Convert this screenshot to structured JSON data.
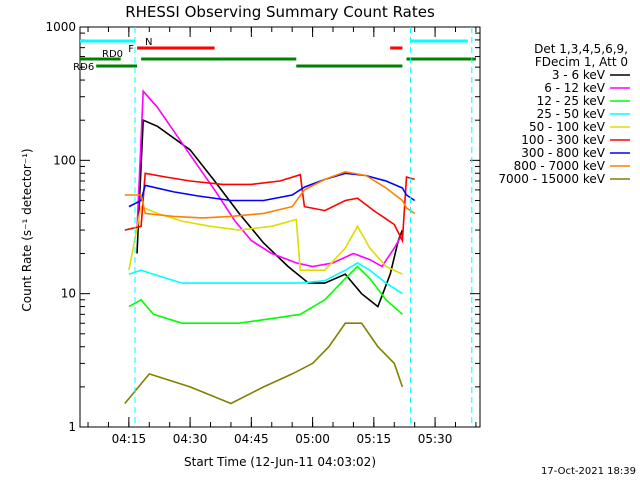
{
  "chart_data": {
    "type": "line",
    "title": "RHESSI Observing Summary Count Rates",
    "xlabel": "Start Time (12-Jun-11 04:03:02)",
    "ylabel": "Count Rate (s⁻¹ detector⁻¹)",
    "y_scale": "log",
    "ylim": [
      1,
      1000
    ],
    "xlim": [
      "04:03:02",
      "05:41:00"
    ],
    "x_ticks": [
      "04:15",
      "04:30",
      "04:45",
      "05:00",
      "05:15",
      "05:30"
    ],
    "y_ticks": [
      "1",
      "10",
      "100",
      "1000"
    ],
    "legend_header": [
      "Det 1,3,4,5,6,9,",
      "FDecim 1, Att 0"
    ],
    "legend_position": "right",
    "series": [
      {
        "name": "3 - 6 keV",
        "color": "#000000",
        "points": [
          [
            "04:17",
            20
          ],
          [
            "04:18:30",
            200
          ],
          [
            "04:22",
            180
          ],
          [
            "04:30",
            120
          ],
          [
            "04:36",
            70
          ],
          [
            "04:42",
            40
          ],
          [
            "04:48",
            24
          ],
          [
            "04:54",
            16
          ],
          [
            "04:59",
            12
          ],
          [
            "05:03",
            12
          ],
          [
            "05:08",
            14
          ],
          [
            "05:12",
            10
          ],
          [
            "05:16",
            8
          ],
          [
            "05:19",
            14
          ],
          [
            "05:21",
            25
          ],
          [
            "05:22",
            30
          ]
        ]
      },
      {
        "name": "6 - 12 keV",
        "color": "#ff00ff",
        "points": [
          [
            "04:17",
            30
          ],
          [
            "04:18:30",
            330
          ],
          [
            "04:22",
            250
          ],
          [
            "04:30",
            110
          ],
          [
            "04:36",
            60
          ],
          [
            "04:41",
            35
          ],
          [
            "04:45",
            25
          ],
          [
            "04:50",
            20
          ],
          [
            "04:56",
            17
          ],
          [
            "05:00",
            16
          ],
          [
            "05:05",
            17
          ],
          [
            "05:10",
            20
          ],
          [
            "05:14",
            18
          ],
          [
            "05:17",
            16
          ],
          [
            "05:20",
            22
          ],
          [
            "05:22",
            28
          ]
        ]
      },
      {
        "name": "12 - 25 keV",
        "color": "#00ff00",
        "points": [
          [
            "04:15",
            8
          ],
          [
            "04:18",
            9
          ],
          [
            "04:21",
            7
          ],
          [
            "04:28",
            6
          ],
          [
            "04:35",
            6
          ],
          [
            "04:42",
            6
          ],
          [
            "04:50",
            6.5
          ],
          [
            "04:57",
            7
          ],
          [
            "05:03",
            9
          ],
          [
            "05:08",
            13
          ],
          [
            "05:11",
            16
          ],
          [
            "05:14",
            13
          ],
          [
            "05:18",
            9
          ],
          [
            "05:22",
            7
          ]
        ]
      },
      {
        "name": "25 - 50 keV",
        "color": "#00ffff",
        "points": [
          [
            "04:15",
            14
          ],
          [
            "04:18",
            15
          ],
          [
            "04:21",
            14
          ],
          [
            "04:28",
            12
          ],
          [
            "04:35",
            12
          ],
          [
            "04:42",
            12
          ],
          [
            "04:50",
            12
          ],
          [
            "04:57",
            12
          ],
          [
            "05:03",
            12.5
          ],
          [
            "05:08",
            15
          ],
          [
            "05:11",
            17
          ],
          [
            "05:14",
            15
          ],
          [
            "05:18",
            12
          ],
          [
            "05:22",
            10
          ]
        ]
      },
      {
        "name": "50 - 100 keV",
        "color": "#dddd00",
        "points": [
          [
            "04:15",
            15
          ],
          [
            "04:18",
            45
          ],
          [
            "04:22",
            40
          ],
          [
            "04:28",
            35
          ],
          [
            "04:35",
            32
          ],
          [
            "04:42",
            30
          ],
          [
            "04:50",
            32
          ],
          [
            "04:56",
            36
          ],
          [
            "04:57",
            15
          ],
          [
            "05:03",
            15
          ],
          [
            "05:08",
            22
          ],
          [
            "05:11",
            32
          ],
          [
            "05:14",
            22
          ],
          [
            "05:18",
            16
          ],
          [
            "05:22",
            14
          ]
        ]
      },
      {
        "name": "100 - 300 keV",
        "color": "#ff0000",
        "points": [
          [
            "04:14",
            30
          ],
          [
            "04:18",
            32
          ],
          [
            "04:19",
            80
          ],
          [
            "04:24",
            75
          ],
          [
            "04:30",
            70
          ],
          [
            "04:38",
            66
          ],
          [
            "04:45",
            66
          ],
          [
            "04:52",
            70
          ],
          [
            "04:57",
            78
          ],
          [
            "04:58",
            45
          ],
          [
            "05:03",
            42
          ],
          [
            "05:08",
            50
          ],
          [
            "05:11",
            52
          ],
          [
            "05:15",
            42
          ],
          [
            "05:20",
            33
          ],
          [
            "05:22",
            25
          ],
          [
            "05:23",
            75
          ],
          [
            "05:25",
            72
          ]
        ]
      },
      {
        "name": "300 - 800 keV",
        "color": "#0000ff",
        "points": [
          [
            "04:15",
            45
          ],
          [
            "04:18",
            50
          ],
          [
            "04:19",
            65
          ],
          [
            "04:26",
            58
          ],
          [
            "04:32",
            54
          ],
          [
            "04:40",
            50
          ],
          [
            "04:48",
            50
          ],
          [
            "04:55",
            55
          ],
          [
            "04:58",
            63
          ],
          [
            "05:03",
            72
          ],
          [
            "05:08",
            80
          ],
          [
            "05:13",
            77
          ],
          [
            "05:18",
            70
          ],
          [
            "05:22",
            62
          ],
          [
            "05:23",
            55
          ],
          [
            "05:25",
            50
          ]
        ]
      },
      {
        "name": "800 - 7000 keV",
        "color": "#ff8000",
        "points": [
          [
            "04:14",
            55
          ],
          [
            "04:18",
            55
          ],
          [
            "04:19",
            40
          ],
          [
            "04:26",
            38
          ],
          [
            "04:33",
            37
          ],
          [
            "04:40",
            38
          ],
          [
            "04:48",
            40
          ],
          [
            "04:55",
            45
          ],
          [
            "04:58",
            60
          ],
          [
            "05:03",
            72
          ],
          [
            "05:08",
            82
          ],
          [
            "05:13",
            77
          ],
          [
            "05:18",
            62
          ],
          [
            "05:22",
            50
          ],
          [
            "05:23",
            44
          ],
          [
            "05:25",
            40
          ]
        ]
      },
      {
        "name": "7000 - 15000 keV",
        "color": "#808000",
        "points": [
          [
            "04:14",
            1.5
          ],
          [
            "04:20",
            2.5
          ],
          [
            "04:30",
            2
          ],
          [
            "04:40",
            1.5
          ],
          [
            "04:48",
            2
          ],
          [
            "04:55",
            2.5
          ],
          [
            "05:00",
            3
          ],
          [
            "05:04",
            4
          ],
          [
            "05:08",
            6
          ],
          [
            "05:12",
            6
          ],
          [
            "05:16",
            4
          ],
          [
            "05:20",
            3
          ],
          [
            "05:22",
            2
          ]
        ]
      }
    ],
    "attenuator_bars": [
      {
        "label": "N",
        "color": "#00ffff",
        "level": "top",
        "segments": [
          [
            "04:03:02",
            "04:16:30"
          ],
          [
            "05:24",
            "05:38"
          ]
        ]
      },
      {
        "label": "F",
        "color": "#ff0000",
        "level": "mid",
        "segments": [
          [
            "04:17",
            "04:36"
          ],
          [
            "05:19",
            "05:22"
          ]
        ]
      },
      {
        "label": "RD0",
        "color": "#008000",
        "level": "mid",
        "segments": [
          [
            "04:03:02",
            "04:13"
          ],
          [
            "04:18",
            "04:56"
          ],
          [
            "05:23",
            "05:40"
          ]
        ]
      },
      {
        "label": "RD6",
        "color": "#008000",
        "level": "low",
        "segments": [
          [
            "04:07",
            "04:17"
          ],
          [
            "04:56",
            "05:22"
          ]
        ]
      }
    ],
    "saa_markers": [
      "04:16:30",
      "05:24",
      "05:39"
    ],
    "grid": false,
    "footer_timestamp": "17-Oct-2021 18:39"
  }
}
